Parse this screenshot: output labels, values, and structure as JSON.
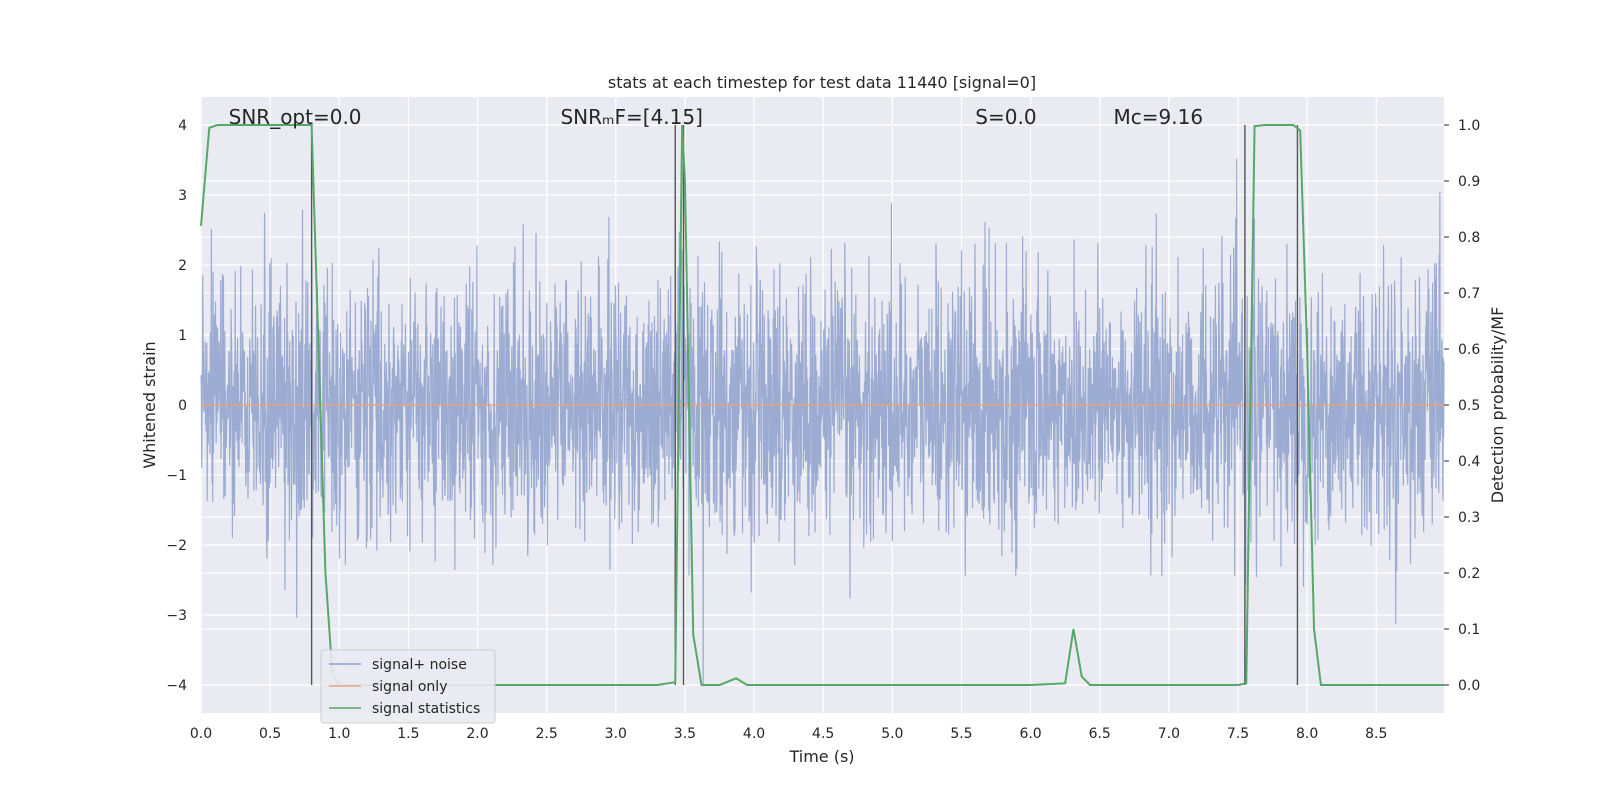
{
  "chart_data": {
    "type": "line",
    "title": "stats at each timestep for test data 11440 [signal=0]",
    "xlabel": "Time (s)",
    "ylabel_left": "Whitened strain",
    "ylabel_right": "Detection probability/MF",
    "xlim": [
      0.0,
      8.99
    ],
    "ylim_left": [
      -4.4,
      4.4
    ],
    "ylim_right": [
      -0.05,
      1.05
    ],
    "x_ticks": [
      "0.0",
      "0.5",
      "1.0",
      "1.5",
      "2.0",
      "2.5",
      "3.0",
      "3.5",
      "4.0",
      "4.5",
      "5.0",
      "5.5",
      "6.0",
      "6.5",
      "7.0",
      "7.5",
      "8.0",
      "8.5"
    ],
    "y_ticks_left": [
      "4",
      "3",
      "2",
      "1",
      "0",
      "−1",
      "−2",
      "−3",
      "−4"
    ],
    "y_ticks_right": [
      "1.0",
      "0.9",
      "0.8",
      "0.7",
      "0.6",
      "0.5",
      "0.4",
      "0.3",
      "0.2",
      "0.1",
      "0.0"
    ],
    "grid": true,
    "legend_position": "lower-left",
    "annotations": [
      {
        "text": "SNR_opt=0.0",
        "x": 0.2
      },
      {
        "text": "SNRₘF=[4.15]",
        "x": 2.6
      },
      {
        "text": "S=0.0",
        "x": 5.6
      },
      {
        "text": "Mᴄ=9.16",
        "x": 6.6
      }
    ],
    "series": [
      {
        "name": "signal+ noise",
        "color": "#8da0cb",
        "description": "whitened noise trace, approx. Gaussian, sigma ~1, peaks up to about ±4",
        "noise_std": 0.8,
        "noise_peak": 4.0
      },
      {
        "name": "signal only",
        "color": "#e5a47f",
        "values_constant": 0.0
      },
      {
        "name": "signal statistics",
        "color": "#55a868",
        "x": [
          0.0,
          0.06,
          0.12,
          0.2,
          0.3,
          0.5,
          0.7,
          0.8,
          0.85,
          0.9,
          0.95,
          1.0,
          1.5,
          2.0,
          2.5,
          3.0,
          3.3,
          3.43,
          3.48,
          3.5,
          3.56,
          3.62,
          3.75,
          3.87,
          3.95,
          4.5,
          5.0,
          5.5,
          6.0,
          6.25,
          6.31,
          6.37,
          6.43,
          6.5,
          7.0,
          7.5,
          7.56,
          7.62,
          7.7,
          7.9,
          7.95,
          8.0,
          8.05,
          8.1,
          8.5,
          8.99
        ],
        "y": [
          0.82,
          0.995,
          1.0,
          1.0,
          1.0,
          1.0,
          1.0,
          1.0,
          0.6,
          0.2,
          0.02,
          0.0,
          0.0,
          0.0,
          0.0,
          0.0,
          0.0,
          0.005,
          1.0,
          0.9,
          0.09,
          0.0,
          0.0,
          0.012,
          0.0,
          0.0,
          0.0,
          0.0,
          0.0,
          0.003,
          0.1,
          0.015,
          0.0,
          0.0,
          0.0,
          0.0,
          0.003,
          0.998,
          1.0,
          1.0,
          0.99,
          0.6,
          0.1,
          0.0,
          0.0,
          0.0
        ]
      }
    ],
    "vertical_lines_x": [
      0.8,
      3.43,
      3.49,
      7.55,
      7.93
    ]
  }
}
